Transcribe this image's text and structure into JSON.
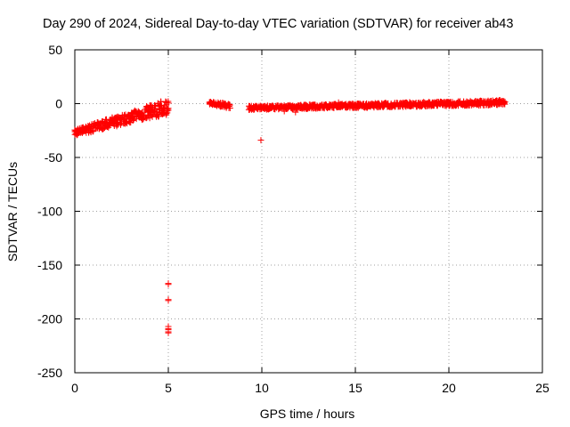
{
  "chart_data": {
    "type": "scatter",
    "title": "Day 290 of 2024, Sidereal Day-to-day VTEC variation (SDTVAR) for receiver ab43",
    "xlabel": "GPS time / hours",
    "ylabel": "SDTVAR / TECUs",
    "xlim": [
      0,
      25
    ],
    "ylim": [
      -250,
      50
    ],
    "x_ticks": [
      0,
      5,
      10,
      15,
      20,
      25
    ],
    "y_ticks": [
      -250,
      -200,
      -150,
      -100,
      -50,
      0,
      50
    ],
    "x_tick_labels": [
      "0",
      "5",
      "10",
      "15",
      "20",
      "25"
    ],
    "y_tick_labels": [
      "-250",
      "-200",
      "-150",
      "-100",
      "-50",
      "0",
      "50"
    ],
    "grid": true,
    "marker": "plus",
    "series": [
      {
        "name": "SDTVAR",
        "color": "#ff0000",
        "segments": [
          {
            "x_start": 0.0,
            "x_end": 5.0,
            "step": 0.05,
            "y_start": -27,
            "y_end": -3,
            "spread": 5
          },
          {
            "x_start": 7.2,
            "x_end": 8.3,
            "step": 0.05,
            "y_start": 0,
            "y_end": -2,
            "spread": 3
          },
          {
            "x_start": 9.3,
            "x_end": 23.0,
            "step": 0.05,
            "y_start": -4,
            "y_end": 1,
            "spread": 3
          }
        ],
        "points": [
          {
            "x": 0.0,
            "y": -26
          },
          {
            "x": 0.1,
            "y": -28
          },
          {
            "x": 4.3,
            "y": -2
          },
          {
            "x": 4.6,
            "y": 2
          },
          {
            "x": 4.8,
            "y": -5
          },
          {
            "x": 4.9,
            "y": 1
          },
          {
            "x": 9.95,
            "y": -34
          },
          {
            "x": 11.2,
            "y": -7
          },
          {
            "x": 11.8,
            "y": -8
          },
          {
            "x": 14.1,
            "y": 1
          },
          {
            "x": 22.7,
            "y": 3
          },
          {
            "x": 5.0,
            "y": -167
          },
          {
            "x": 5.0,
            "y": -168
          },
          {
            "x": 5.0,
            "y": -182
          },
          {
            "x": 5.0,
            "y": -183
          },
          {
            "x": 5.0,
            "y": -207
          },
          {
            "x": 5.0,
            "y": -209
          },
          {
            "x": 5.0,
            "y": -210
          },
          {
            "x": 5.0,
            "y": -212
          },
          {
            "x": 5.0,
            "y": -213
          }
        ]
      }
    ]
  }
}
